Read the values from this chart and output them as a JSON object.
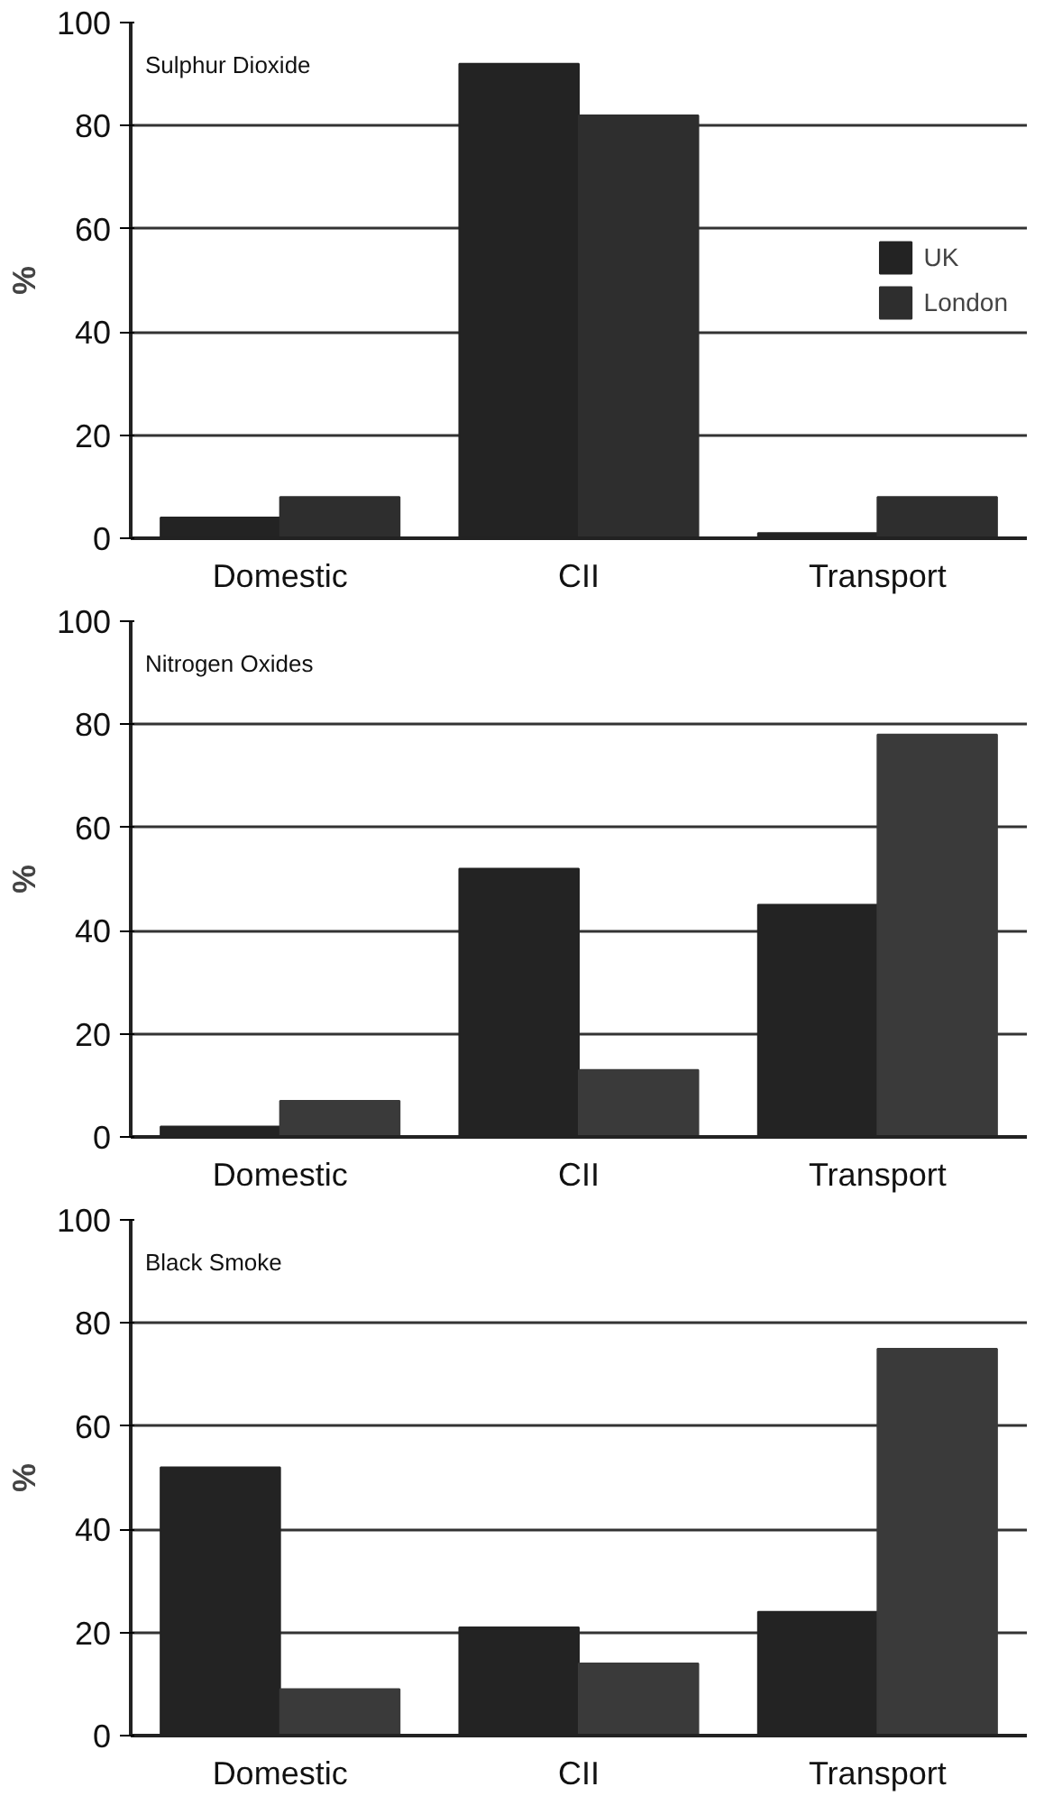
{
  "chart_data": [
    {
      "type": "bar",
      "title": "Sulphur Dioxide",
      "ylabel": "%",
      "categories": [
        "Domestic",
        "CII",
        "Transport"
      ],
      "series": [
        {
          "name": "UK",
          "color": "#232323",
          "values": [
            4,
            92,
            1
          ]
        },
        {
          "name": "London",
          "color": "#2e2e2e",
          "values": [
            8,
            82,
            8
          ]
        }
      ],
      "ylim": [
        0,
        100
      ],
      "yticks": [
        0,
        20,
        40,
        60,
        80,
        100
      ],
      "grid": "y",
      "legend": "right"
    },
    {
      "type": "bar",
      "title": "Nitrogen Oxides",
      "ylabel": "%",
      "categories": [
        "Domestic",
        "CII",
        "Transport"
      ],
      "series": [
        {
          "color": "#232323",
          "values": [
            2,
            52,
            45
          ]
        },
        {
          "color": "#3a3a3a",
          "values": [
            7,
            13,
            78
          ]
        }
      ],
      "ylim": [
        0,
        100
      ],
      "yticks": [
        0,
        20,
        40,
        60,
        80,
        100
      ],
      "grid": "y"
    },
    {
      "type": "bar",
      "title": "Black Smoke",
      "ylabel": "%",
      "categories": [
        "Domestic",
        "CII",
        "Transport"
      ],
      "series": [
        {
          "color": "#232323",
          "values": [
            52,
            21,
            24
          ]
        },
        {
          "color": "#3a3a3a",
          "values": [
            9,
            14,
            75
          ]
        }
      ],
      "ylim": [
        0,
        100
      ],
      "yticks": [
        0,
        20,
        40,
        60,
        80,
        100
      ],
      "grid": "y"
    }
  ]
}
